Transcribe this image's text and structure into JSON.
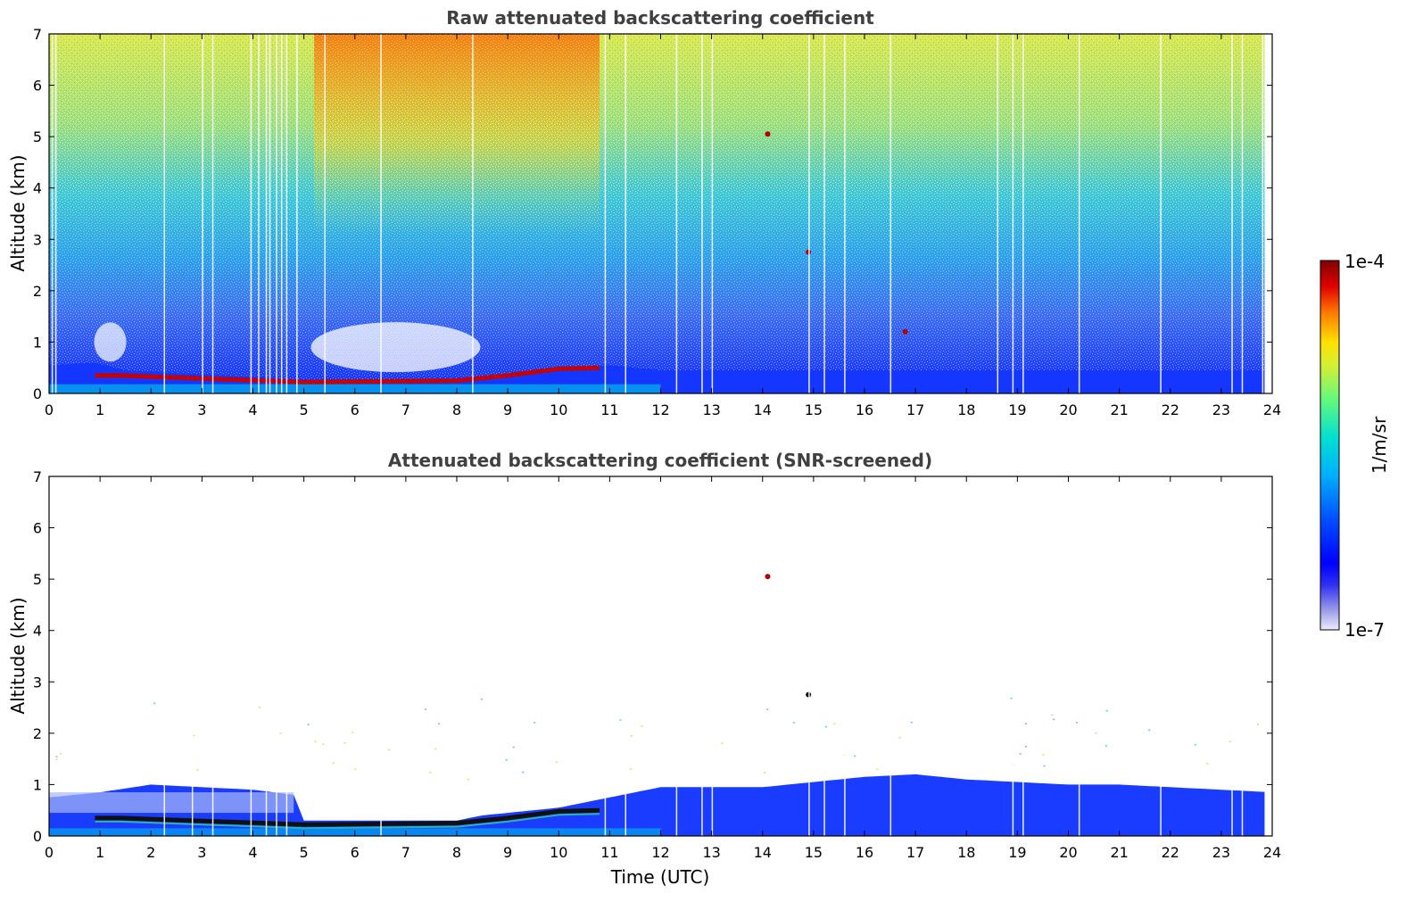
{
  "chart_data": [
    {
      "type": "heatmap",
      "title": "Raw attenuated backscattering coefficient",
      "xlabel": "",
      "ylabel": "Altitude (km)",
      "xlim": [
        0,
        24
      ],
      "ylim": [
        0,
        7
      ],
      "x_ticks": [
        "0",
        "1",
        "2",
        "3",
        "4",
        "5",
        "6",
        "7",
        "8",
        "9",
        "10",
        "11",
        "12",
        "13",
        "14",
        "15",
        "16",
        "17",
        "18",
        "19",
        "20",
        "21",
        "22",
        "23",
        "24"
      ],
      "y_ticks": [
        "0",
        "1",
        "2",
        "3",
        "4",
        "5",
        "6",
        "7"
      ],
      "features": {
        "layer_top_km": [
          [
            0,
            0.55
          ],
          [
            0.9,
            0.6
          ],
          [
            1.5,
            0.45
          ],
          [
            4.5,
            0.3
          ],
          [
            5,
            0.22
          ],
          [
            8,
            0.25
          ],
          [
            9,
            0.38
          ],
          [
            10,
            0.5
          ],
          [
            11,
            0.55
          ],
          [
            12,
            0.45
          ],
          [
            24,
            0.45
          ]
        ],
        "aerosol_cloud_layer_km": [
          [
            0.9,
            0.35
          ],
          [
            1.4,
            0.35
          ],
          [
            5,
            0.22
          ],
          [
            8,
            0.25
          ],
          [
            9,
            0.35
          ],
          [
            10,
            0.48
          ],
          [
            10.8,
            0.5
          ]
        ],
        "elevated_features": [
          {
            "x": 14.1,
            "y": 5.05
          },
          {
            "x": 14.9,
            "y": 2.75
          },
          {
            "x": 16.8,
            "y": 1.2
          }
        ]
      }
    },
    {
      "type": "heatmap",
      "title": "Attenuated backscattering coefficient (SNR-screened)",
      "xlabel": "Time (UTC)",
      "ylabel": "Altitude (km)",
      "xlim": [
        0,
        24
      ],
      "ylim": [
        0,
        7
      ],
      "x_ticks": [
        "0",
        "1",
        "2",
        "3",
        "4",
        "5",
        "6",
        "7",
        "8",
        "9",
        "10",
        "11",
        "12",
        "13",
        "14",
        "15",
        "16",
        "17",
        "18",
        "19",
        "20",
        "21",
        "22",
        "23",
        "24"
      ],
      "y_ticks": [
        "0",
        "1",
        "2",
        "3",
        "4",
        "5",
        "6",
        "7"
      ],
      "features": {
        "boundary_layer_top_km": [
          [
            0,
            0.75
          ],
          [
            1,
            0.85
          ],
          [
            2,
            1.0
          ],
          [
            3,
            0.95
          ],
          [
            4,
            0.9
          ],
          [
            4.8,
            0.8
          ],
          [
            5,
            0.3
          ],
          [
            8,
            0.3
          ],
          [
            8.5,
            0.4
          ],
          [
            9,
            0.45
          ],
          [
            10,
            0.55
          ],
          [
            11,
            0.75
          ],
          [
            12,
            0.95
          ],
          [
            13,
            0.95
          ],
          [
            14,
            0.95
          ],
          [
            15,
            1.05
          ],
          [
            16,
            1.15
          ],
          [
            17,
            1.2
          ],
          [
            18,
            1.1
          ],
          [
            19,
            1.05
          ],
          [
            20,
            1.0
          ],
          [
            21,
            1.0
          ],
          [
            22,
            0.95
          ],
          [
            23,
            0.9
          ],
          [
            24,
            0.85
          ]
        ],
        "elevated_features": [
          {
            "x": 14.1,
            "y": 5.05
          },
          {
            "x": 14.9,
            "y": 2.75
          }
        ]
      }
    }
  ],
  "colorbar": {
    "label": "1/m/sr",
    "max_label": "1e-4",
    "min_label": "1e-7",
    "colors": [
      "#ececfa",
      "#c8c8f0",
      "#a0a0ea",
      "#7878ee",
      "#3232f0",
      "#0000ff",
      "#0028ff",
      "#0050ff",
      "#0078ff",
      "#00a0ff",
      "#00c8f0",
      "#00e0d0",
      "#20f0b0",
      "#60f880",
      "#a0f850",
      "#d8f030",
      "#ffe000",
      "#ffb000",
      "#ff7800",
      "#ff3c00",
      "#e00000",
      "#a00000",
      "#800000"
    ]
  }
}
